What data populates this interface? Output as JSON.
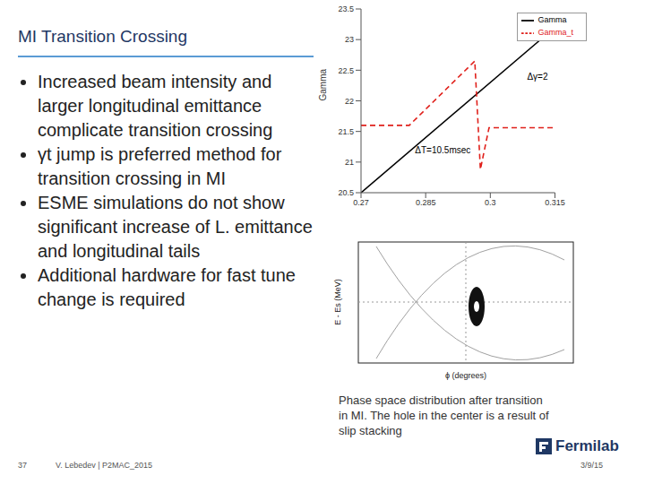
{
  "title": "MI Transition Crossing",
  "bullets": [
    "Increased beam intensity and larger longitudinal emittance complicate transition crossing",
    "γt jump is preferred method for transition crossing in MI",
    "ESME simulations do not show significant increase of L. emittance and longitudinal tails",
    "Additional hardware for fast tune change is required"
  ],
  "chart_data": {
    "type": "line",
    "ylabel": "Gamma",
    "xlim": [
      0.27,
      0.315
    ],
    "xticks": [
      0.27,
      0.285,
      0.3,
      0.315
    ],
    "ylim": [
      20.5,
      23.5
    ],
    "yticks": [
      20.5,
      21,
      21.5,
      22,
      22.5,
      23,
      23.5
    ],
    "grid": false,
    "legend": "upper right",
    "series": [
      {
        "name": "Gamma",
        "color": "#000000",
        "line_style": "solid",
        "x": [
          0.27,
          0.315
        ],
        "values": [
          20.5,
          23.2
        ]
      },
      {
        "name": "Gamma_t",
        "color": "#e0201b",
        "line_style": "dashed",
        "x": [
          0.27,
          0.2812,
          0.2964,
          0.2977,
          0.2997,
          0.315
        ],
        "values": [
          21.6,
          21.6,
          22.65,
          20.88,
          21.56,
          21.56
        ]
      }
    ],
    "annotations": [
      {
        "text": "Δγ=2",
        "x": 0.3075,
        "y": 22.4
      },
      {
        "text": "ΔT=10.5msec",
        "x": 0.2815,
        "y": 21.2
      }
    ]
  },
  "figure": {
    "xlabel": "ϕ (degrees)",
    "ylabel": "E - Es (MeV)"
  },
  "caption": "Phase space distribution after transition in MI. The hole in the center is a result of slip stacking",
  "footer": {
    "page": "37",
    "author": "V. Lebedev | P2MAC_2015",
    "date": "3/9/15",
    "logo": "Fermilab"
  }
}
